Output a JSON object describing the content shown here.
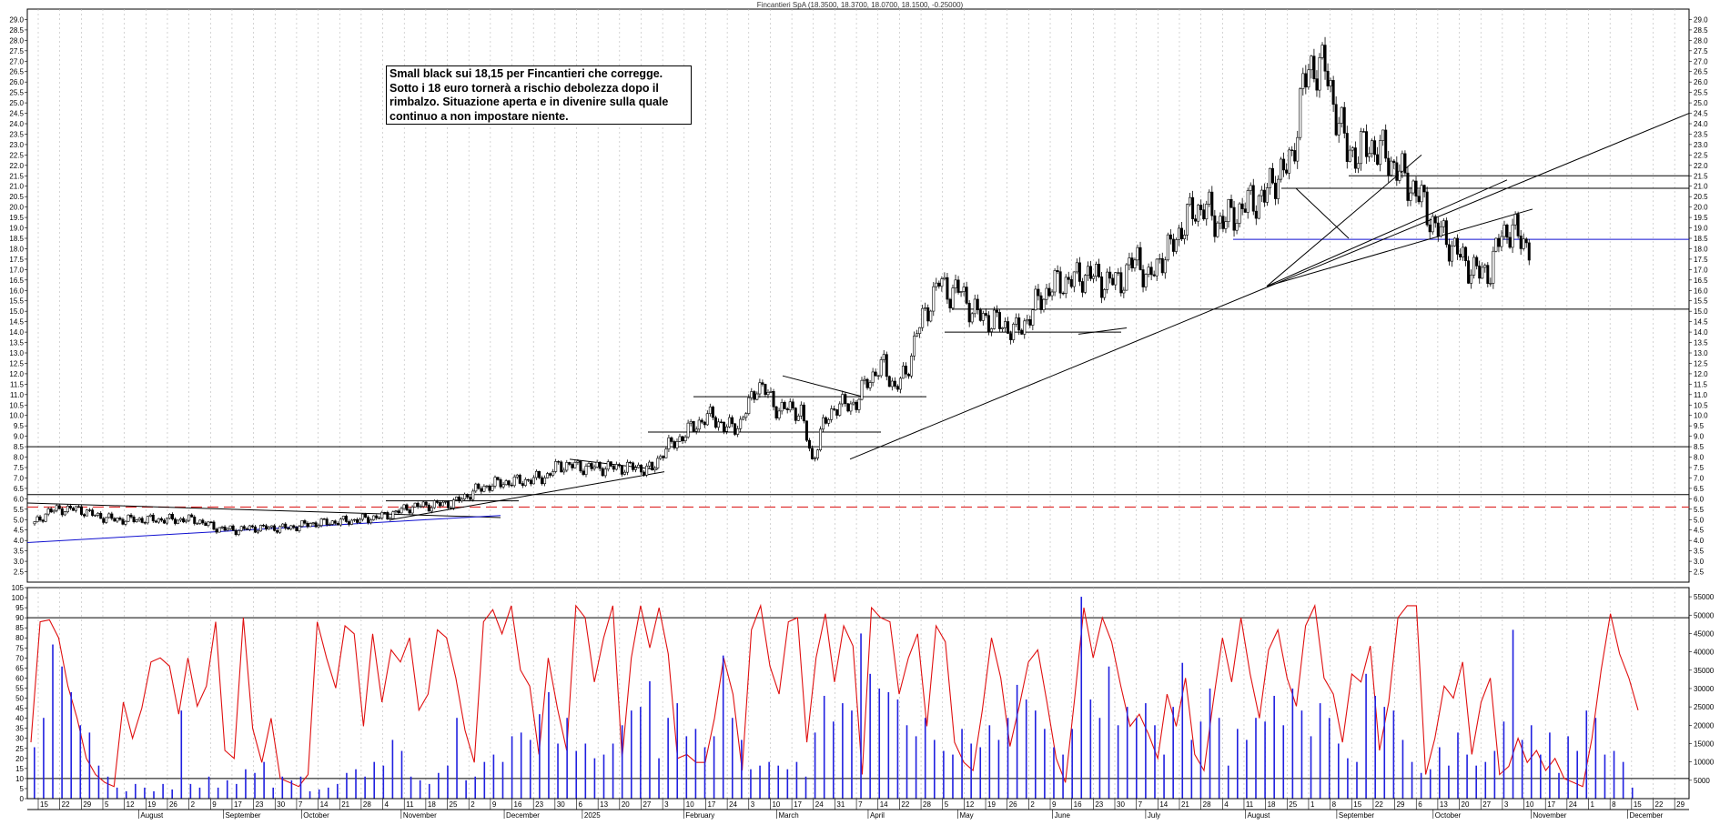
{
  "header": {
    "title": "Fincantieri SpA (18.3500, 18.3700, 18.0700, 18.1500, -0.25000)"
  },
  "annotation": {
    "lines": [
      "Small black sui 18,15 per Fincantieri che corregge.",
      "Sotto i 18 euro tornerà a rischio debolezza dopo il",
      "rimbalzo. Situazione aperta e in divenire sulla quale",
      "continuo a non impostare niente."
    ]
  },
  "colors": {
    "candle": "#000000",
    "trendline_blue": "#1010d0",
    "support_dashed": "#e03030",
    "oscillator": "#e01010",
    "volume": "#2020e0",
    "grid": "#b8b8b8"
  },
  "chart_data": [
    {
      "type": "line",
      "subtype": "candlestick",
      "title": "Fincantieri SpA (18.3500, 18.3700, 18.0700, 18.1500, -0.25000)",
      "last_bar": {
        "open": 18.35,
        "high": 18.37,
        "low": 18.07,
        "close": 18.15,
        "change": -0.25
      },
      "ylim": [
        2.0,
        29.5
      ],
      "yticks": [
        "29.0",
        "28.5",
        "28.0",
        "27.5",
        "27.0",
        "26.5",
        "26.0",
        "25.5",
        "25.0",
        "24.5",
        "24.0",
        "23.5",
        "23.0",
        "22.5",
        "22.0",
        "21.5",
        "21.0",
        "20.5",
        "20.0",
        "19.5",
        "19.0",
        "18.5",
        "18.0",
        "17.5",
        "17.0",
        "16.5",
        "16.0",
        "15.5",
        "15.0",
        "14.5",
        "14.0",
        "13.5",
        "13.0",
        "12.5",
        "12.0",
        "11.5",
        "11.0",
        "10.5",
        "10.0",
        "9.5",
        "9.0",
        "8.5",
        "8.0",
        "7.5",
        "7.0",
        "6.5",
        "6.0",
        "5.5",
        "5.0",
        "4.5",
        "4.0",
        "3.5",
        "3.0",
        "2.5"
      ],
      "close_path": [
        [
          0,
          4.8
        ],
        [
          5,
          5.4
        ],
        [
          10,
          5.5
        ],
        [
          16,
          5.5
        ],
        [
          22,
          5.2
        ],
        [
          29,
          5.0
        ],
        [
          38,
          5.0
        ],
        [
          50,
          5.0
        ],
        [
          58,
          5.0
        ],
        [
          66,
          4.6
        ],
        [
          72,
          4.5
        ],
        [
          80,
          4.6
        ],
        [
          92,
          4.6
        ],
        [
          100,
          4.8
        ],
        [
          110,
          4.9
        ],
        [
          118,
          5.0
        ],
        [
          128,
          5.2
        ],
        [
          136,
          5.6
        ],
        [
          144,
          5.7
        ],
        [
          152,
          5.8
        ],
        [
          160,
          6.4
        ],
        [
          166,
          6.7
        ],
        [
          172,
          6.8
        ],
        [
          180,
          6.9
        ],
        [
          186,
          7.1
        ],
        [
          190,
          7.6
        ],
        [
          194,
          7.6
        ],
        [
          200,
          7.5
        ],
        [
          208,
          7.5
        ],
        [
          214,
          7.5
        ],
        [
          218,
          7.5
        ],
        [
          224,
          7.4
        ],
        [
          228,
          8.3
        ],
        [
          234,
          8.9
        ],
        [
          240,
          9.6
        ],
        [
          246,
          10.0
        ],
        [
          250,
          9.4
        ],
        [
          256,
          9.6
        ],
        [
          258,
          10.2
        ],
        [
          262,
          11.5
        ],
        [
          266,
          11.0
        ],
        [
          270,
          10.2
        ],
        [
          274,
          10.4
        ],
        [
          278,
          10.1
        ],
        [
          282,
          7.8
        ],
        [
          286,
          9.5
        ],
        [
          290,
          10.4
        ],
        [
          294,
          10.5
        ],
        [
          298,
          10.6
        ],
        [
          302,
          11.7
        ],
        [
          308,
          12.4
        ],
        [
          312,
          11.3
        ],
        [
          316,
          12.0
        ],
        [
          320,
          14.0
        ],
        [
          324,
          15.2
        ],
        [
          328,
          16.4
        ],
        [
          332,
          15.9
        ],
        [
          336,
          16.0
        ],
        [
          340,
          15.0
        ],
        [
          346,
          14.6
        ],
        [
          352,
          14.3
        ],
        [
          356,
          14.0
        ],
        [
          360,
          14.6
        ],
        [
          364,
          15.5
        ],
        [
          370,
          16.3
        ],
        [
          376,
          16.5
        ],
        [
          382,
          16.8
        ],
        [
          388,
          16.4
        ],
        [
          394,
          16.5
        ],
        [
          400,
          17.6
        ],
        [
          404,
          16.4
        ],
        [
          408,
          17.5
        ],
        [
          412,
          18.0
        ],
        [
          418,
          19.5
        ],
        [
          424,
          20.1
        ],
        [
          428,
          19.3
        ],
        [
          434,
          19.5
        ],
        [
          440,
          20.2
        ],
        [
          446,
          20.5
        ],
        [
          450,
          21.5
        ],
        [
          454,
          21.8
        ],
        [
          456,
          22.4
        ],
        [
          460,
          25.8
        ],
        [
          464,
          26.9
        ],
        [
          468,
          26.6
        ],
        [
          472,
          24.6
        ],
        [
          476,
          22.7
        ],
        [
          480,
          22.6
        ],
        [
          484,
          23.0
        ],
        [
          490,
          22.5
        ],
        [
          496,
          21.5
        ],
        [
          500,
          20.9
        ],
        [
          504,
          20.1
        ],
        [
          508,
          19.0
        ],
        [
          512,
          18.5
        ],
        [
          516,
          17.8
        ],
        [
          520,
          17.2
        ],
        [
          524,
          16.8
        ],
        [
          528,
          17.0
        ],
        [
          532,
          18.7
        ],
        [
          536,
          19.0
        ],
        [
          538,
          18.5
        ],
        [
          542,
          18.15
        ]
      ],
      "horizontal_levels": [
        21.5,
        20.9,
        18.45,
        15.1,
        8.5,
        6.2
      ],
      "dashed_support": 5.6,
      "annotations": [
        "Small black sui 18,15 per Fincantieri che corregge."
      ]
    },
    {
      "type": "line",
      "subtype": "oscillator_with_volume",
      "ylim": [
        0,
        105
      ],
      "yticks": [
        "105",
        "100",
        "95",
        "90",
        "85",
        "80",
        "75",
        "70",
        "65",
        "60",
        "55",
        "50",
        "45",
        "40",
        "35",
        "30",
        "25",
        "20",
        "15",
        "10",
        "5",
        "0"
      ],
      "levels": [
        90,
        10
      ],
      "volume_ylim": [
        0,
        57500
      ],
      "volume_ticks": [
        "55000",
        "50000",
        "45000",
        "40000",
        "35000",
        "30000",
        "25000",
        "20000",
        "15000",
        "10000",
        "5000"
      ],
      "oscillator": [
        28,
        88,
        89,
        80,
        56,
        40,
        20,
        12,
        8,
        6,
        48,
        30,
        45,
        68,
        70,
        66,
        42,
        70,
        46,
        56,
        88,
        24,
        20,
        90,
        35,
        18,
        40,
        10,
        8,
        6,
        12,
        88,
        70,
        55,
        86,
        82,
        36,
        82,
        48,
        74,
        68,
        80,
        44,
        52,
        84,
        80,
        60,
        34,
        18,
        88,
        94,
        82,
        96,
        64,
        56,
        22,
        70,
        45,
        24,
        96,
        90,
        58,
        80,
        96,
        20,
        70,
        96,
        75,
        95,
        72,
        20,
        22,
        18,
        18,
        40,
        70,
        52,
        14,
        84,
        96,
        66,
        52,
        88,
        90,
        28,
        70,
        92,
        58,
        86,
        76,
        12,
        95,
        90,
        88,
        52,
        70,
        82,
        36,
        86,
        78,
        28,
        18,
        14,
        44,
        80,
        60,
        26,
        46,
        68,
        74,
        48,
        20,
        8,
        50,
        95,
        70,
        90,
        78,
        56,
        36,
        42,
        32,
        20,
        52,
        36,
        60,
        22,
        14,
        48,
        80,
        58,
        90,
        62,
        40,
        74,
        84,
        60,
        46,
        86,
        96,
        60,
        52,
        28,
        62,
        58,
        76,
        24,
        48,
        90,
        96,
        96,
        12,
        30,
        56,
        50,
        68,
        22,
        48,
        60,
        12,
        16,
        30,
        18,
        24,
        14,
        20,
        10,
        8,
        6,
        30,
        64,
        92,
        72,
        60,
        44
      ],
      "volume": [
        14000,
        22000,
        42000,
        36000,
        29000,
        20000,
        18000,
        9000,
        6000,
        3000,
        2000,
        4000,
        3000,
        2000,
        4000,
        2500,
        24000,
        4000,
        3000,
        6000,
        3000,
        5000,
        4000,
        8000,
        7000,
        10000,
        3000,
        6000,
        5000,
        6000,
        2000,
        2500,
        3000,
        4000,
        7000,
        8000,
        6000,
        10000,
        9000,
        16000,
        13000,
        6000,
        5000,
        4000,
        7000,
        9000,
        22000,
        5000,
        6000,
        10000,
        12000,
        10000,
        17000,
        18000,
        16000,
        23000,
        29000,
        15000,
        22000,
        13000,
        15000,
        11000,
        12000,
        15000,
        20000,
        24000,
        25000,
        32000,
        11000,
        22000,
        26000,
        17000,
        19000,
        14000,
        17000,
        39000,
        22000,
        16000,
        8000,
        9000,
        10000,
        9000,
        8000,
        10000,
        6000,
        18000,
        28000,
        21000,
        26000,
        24000,
        45000,
        34000,
        30000,
        29000,
        27000,
        20000,
        17000,
        22000,
        16000,
        13000,
        12000,
        19000,
        15000,
        14000,
        20000,
        16000,
        22000,
        31000,
        27000,
        24000,
        19000,
        14000,
        12000,
        19000,
        55000,
        27000,
        22000,
        36000,
        20000,
        25000,
        22000,
        26000,
        20000,
        12000,
        25000,
        37000,
        16000,
        21000,
        30000,
        22000,
        9000,
        19000,
        16000,
        22000,
        21000,
        28000,
        20000,
        30000,
        24000,
        17000,
        26000,
        22000,
        15000,
        11000,
        10000,
        34000,
        28000,
        25000,
        24000,
        16000,
        10000,
        7000,
        8000,
        14000,
        9000,
        18000,
        12000,
        9000,
        10000,
        13000,
        21000,
        46000,
        16000,
        20000,
        12000,
        18000,
        7000,
        17000,
        13000,
        24000,
        22000,
        12000,
        13000,
        10000,
        3000
      ]
    }
  ],
  "x_axis": {
    "day_ticks": [
      "15",
      "22",
      "29",
      "5",
      "12",
      "19",
      "26",
      "2",
      "9",
      "17",
      "23",
      "30",
      "7",
      "14",
      "21",
      "28",
      "4",
      "11",
      "18",
      "25",
      "2",
      "9",
      "16",
      "23",
      "30",
      "6",
      "13",
      "20",
      "27",
      "3",
      "10",
      "17",
      "24",
      "3",
      "10",
      "17",
      "24",
      "31",
      "7",
      "14",
      "22",
      "28",
      "5",
      "12",
      "19",
      "26",
      "2",
      "9",
      "16",
      "23",
      "30",
      "7",
      "14",
      "21",
      "28",
      "4",
      "11",
      "18",
      "25",
      "1",
      "8",
      "15",
      "22",
      "29",
      "6",
      "13",
      "20",
      "27",
      "3",
      "10",
      "17",
      "24",
      "1",
      "8",
      "15",
      "22",
      "29"
    ],
    "months": [
      {
        "label": "August",
        "x": 0.067
      },
      {
        "label": "September",
        "x": 0.118
      },
      {
        "label": "October",
        "x": 0.165
      },
      {
        "label": "November",
        "x": 0.225
      },
      {
        "label": "December",
        "x": 0.287
      },
      {
        "label": "2025",
        "x": 0.334
      },
      {
        "label": "February",
        "x": 0.395
      },
      {
        "label": "March",
        "x": 0.451
      },
      {
        "label": "April",
        "x": 0.506
      },
      {
        "label": "May",
        "x": 0.56
      },
      {
        "label": "June",
        "x": 0.617
      },
      {
        "label": "July",
        "x": 0.673
      },
      {
        "label": "August",
        "x": 0.733
      },
      {
        "label": "September",
        "x": 0.788
      },
      {
        "label": "October",
        "x": 0.846
      },
      {
        "label": "November",
        "x": 0.905
      },
      {
        "label": "December",
        "x": 0.963
      }
    ]
  }
}
